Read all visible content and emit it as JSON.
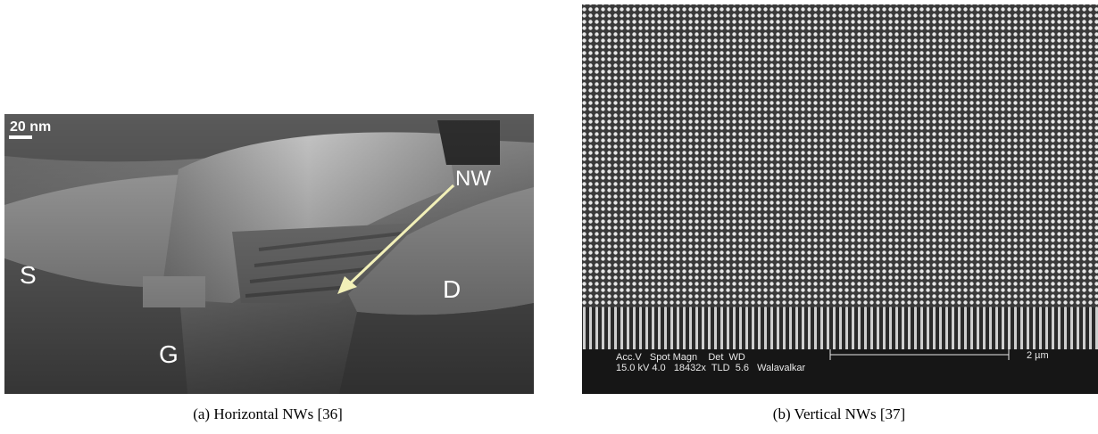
{
  "figures": [
    {
      "caption": "(a) Horizontal NWs [36]",
      "labels": {
        "scale": "20 nm",
        "nw": "NW",
        "source": "S",
        "gate": "G",
        "drain": "D"
      }
    },
    {
      "caption": "(b) Vertical NWs [37]",
      "info_header": "Acc.V   Spot Magn    Det  WD",
      "info_values": "15.0 kV 4.0   18432x  TLD  5.6   Walavalkar",
      "scale": "2 µm"
    }
  ]
}
